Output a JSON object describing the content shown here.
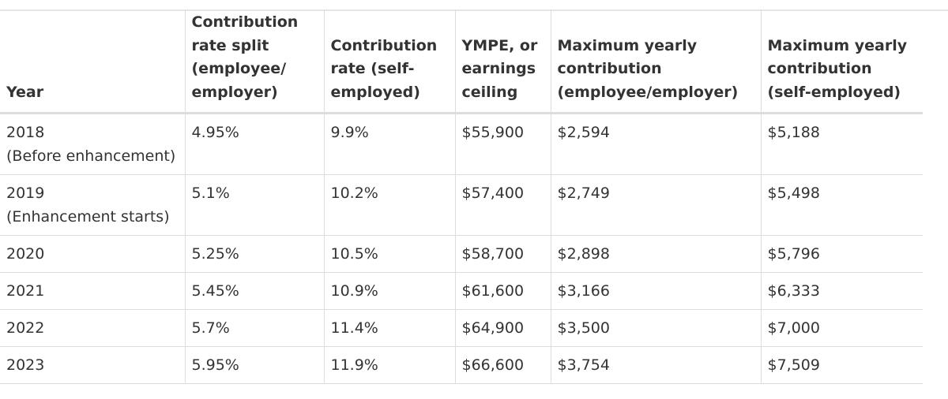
{
  "table": {
    "headers": [
      [
        "Year"
      ],
      [
        "Contribution",
        "rate split",
        "(employee/",
        "employer)"
      ],
      [
        "Contribution",
        "rate (self-",
        "employed)"
      ],
      [
        "YMPE, or",
        "earnings",
        "ceiling"
      ],
      [
        "Maximum yearly",
        "contribution",
        "(employee/employer)"
      ],
      [
        "Maximum yearly",
        "contribution",
        "(self-employed)"
      ]
    ],
    "rows": [
      {
        "year": "2018",
        "note": "(Before enhancement)",
        "split": "4.95%",
        "self": "9.9%",
        "ympe": "$55,900",
        "max_emp": "$2,594",
        "max_self": "$5,188"
      },
      {
        "year": "2019",
        "note": "(Enhancement starts)",
        "split": "5.1%",
        "self": "10.2%",
        "ympe": "$57,400",
        "max_emp": "$2,749",
        "max_self": "$5,498"
      },
      {
        "year": "2020",
        "split": "5.25%",
        "self": "10.5%",
        "ympe": "$58,700",
        "max_emp": "$2,898",
        "max_self": "$5,796"
      },
      {
        "year": "2021",
        "split": "5.45%",
        "self": "10.9%",
        "ympe": "$61,600",
        "max_emp": "$3,166",
        "max_self": "$6,333"
      },
      {
        "year": "2022",
        "split": "5.7%",
        "self": "11.4%",
        "ympe": "$64,900",
        "max_emp": "$3,500",
        "max_self": "$7,000"
      },
      {
        "year": "2023",
        "split": "5.95%",
        "self": "11.9%",
        "ympe": "$66,600",
        "max_emp": "$3,754",
        "max_self": "$7,509"
      }
    ]
  }
}
